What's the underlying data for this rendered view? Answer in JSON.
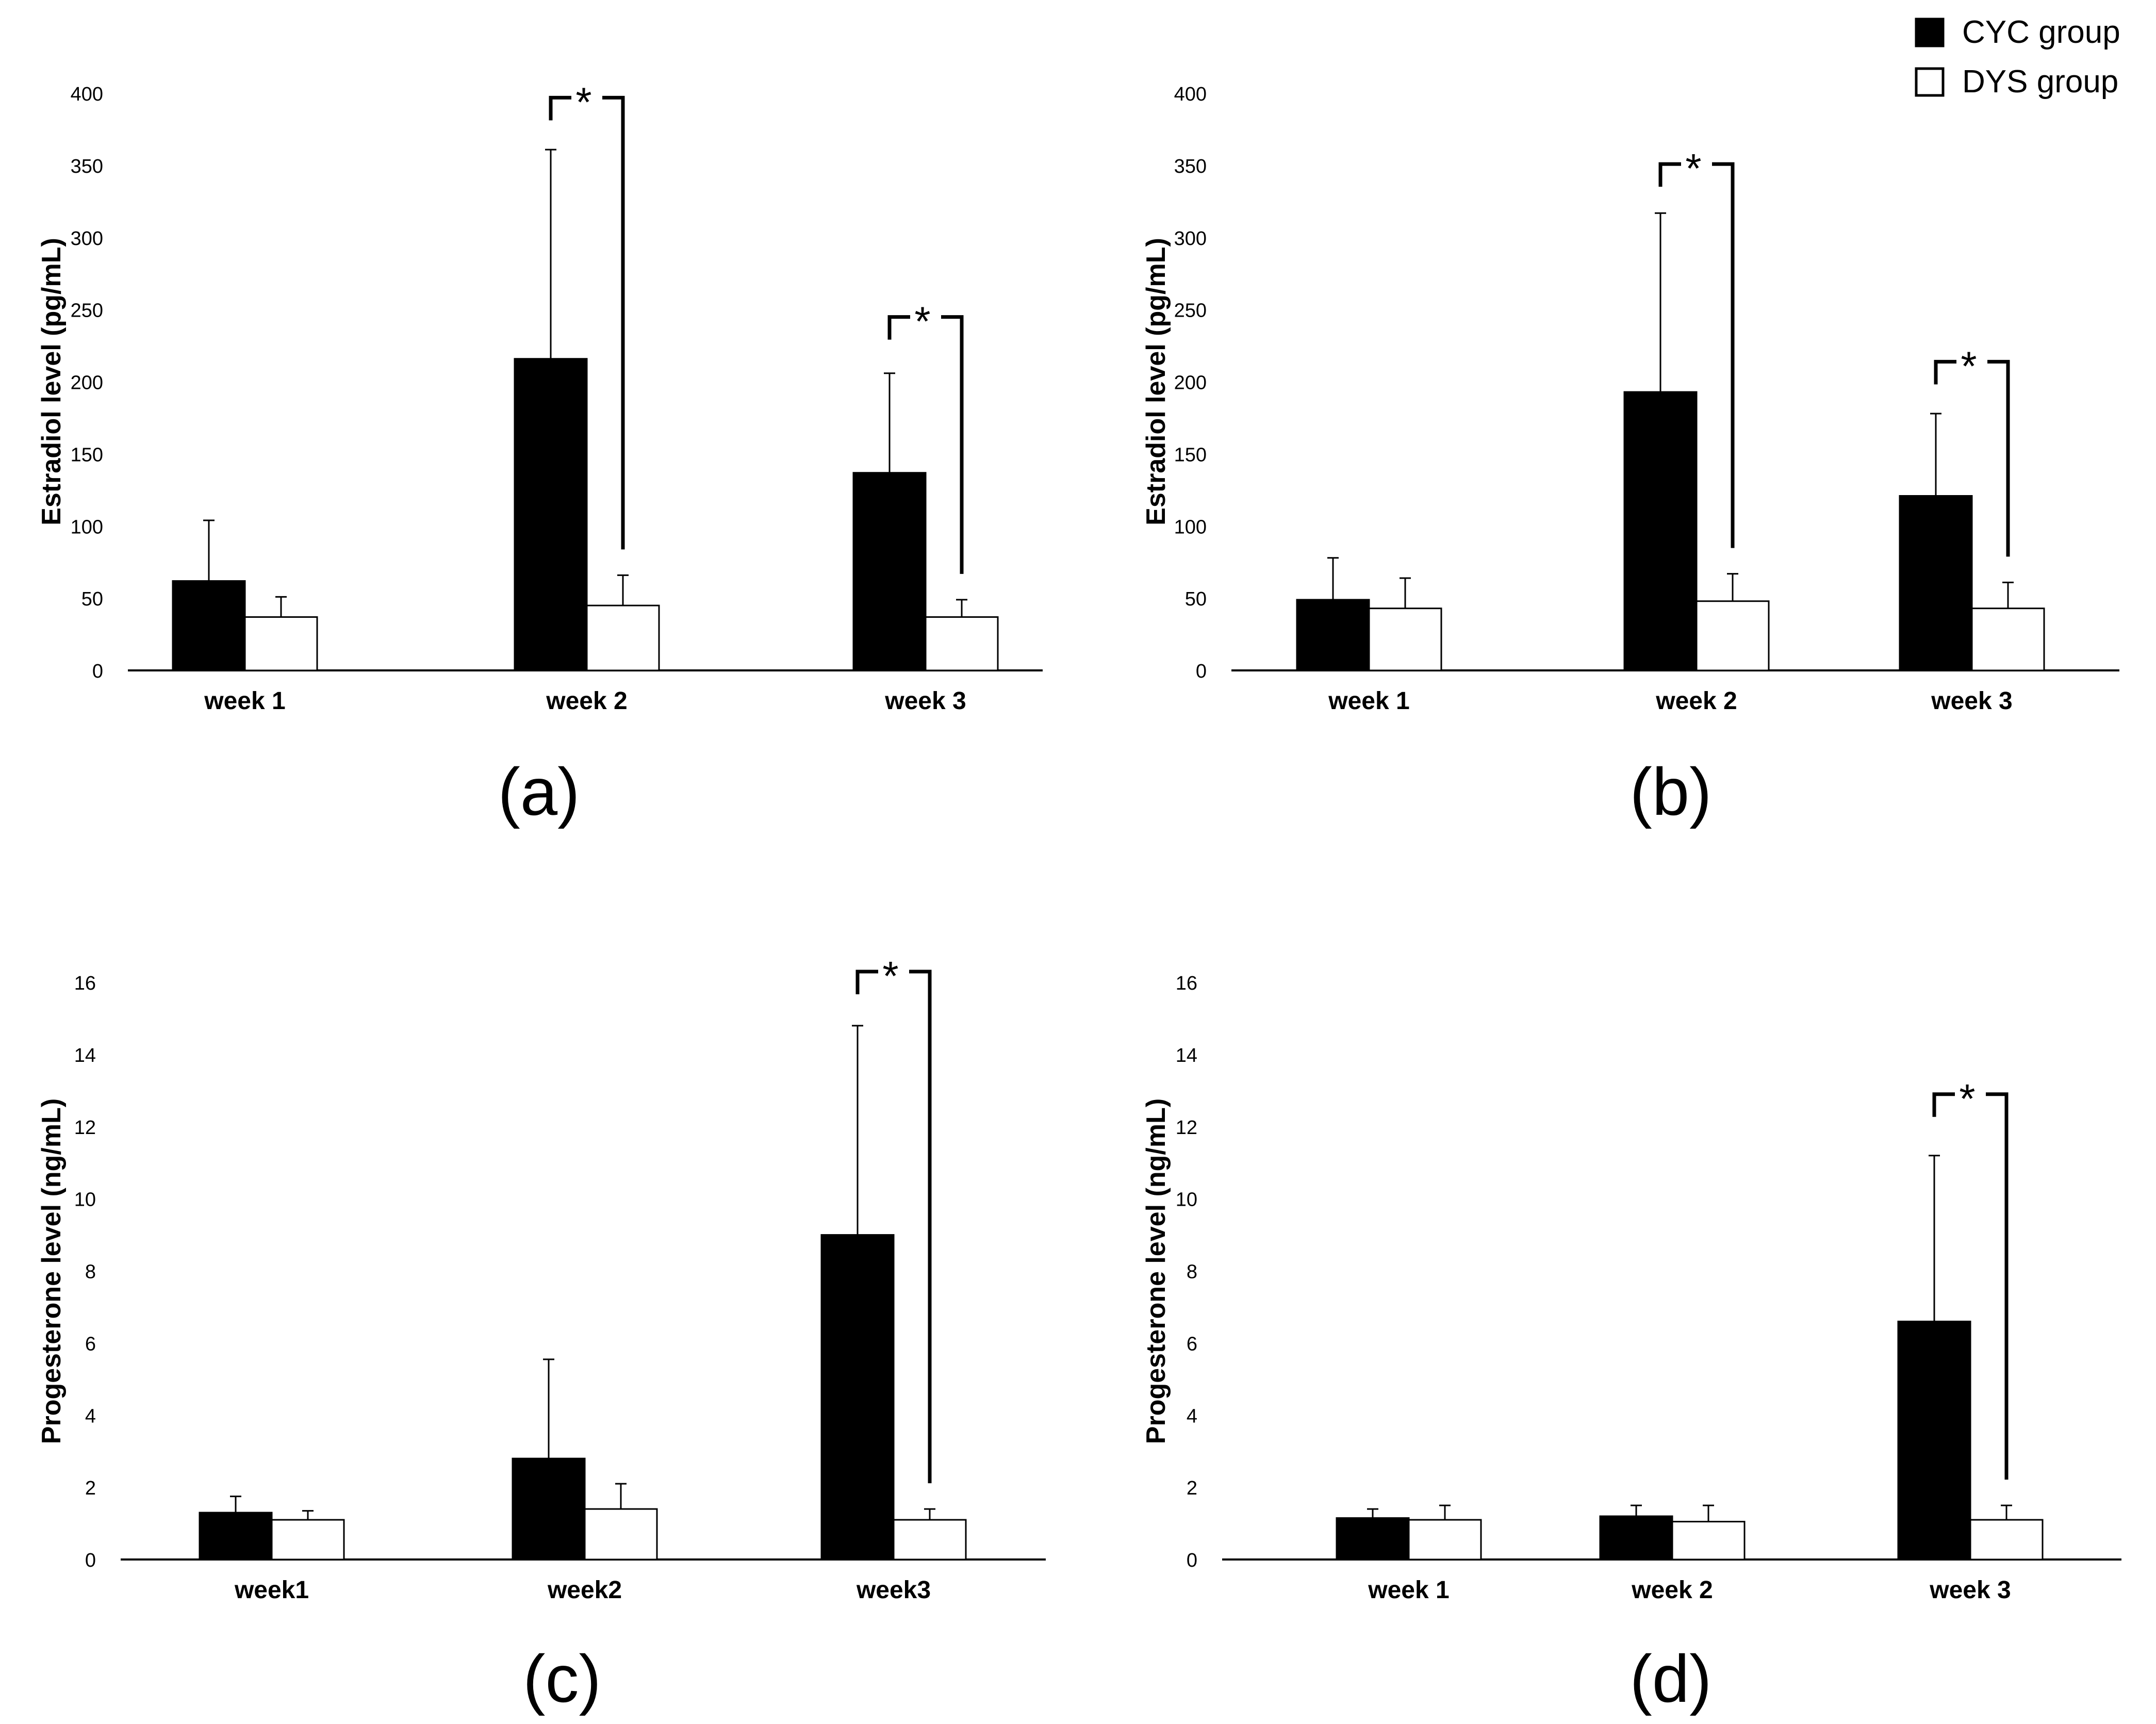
{
  "legend": {
    "items": [
      {
        "name": "CYC group",
        "fill": "#000000"
      },
      {
        "name": "DYS group",
        "fill": "#ffffff"
      }
    ],
    "placement": "top-right"
  },
  "colors": {
    "cyc": "#000000",
    "dys": "#ffffff",
    "stroke": "#000000"
  },
  "chart_data": [
    {
      "type": "bar",
      "panel_label": "(a)",
      "ylabel": "Estradiol level (pg/mL)",
      "ylim": [
        0,
        400
      ],
      "yticks": [
        "0",
        "50",
        "100",
        "150",
        "200",
        "250",
        "300",
        "350",
        "400"
      ],
      "categories": [
        "week 1",
        "week 2",
        "week 3"
      ],
      "series": [
        {
          "name": "CYC group",
          "values": [
            62,
            216,
            137
          ],
          "errors": [
            42,
            145,
            69
          ]
        },
        {
          "name": "DYS group",
          "values": [
            37,
            45,
            37
          ],
          "errors": [
            14,
            21,
            12
          ]
        }
      ],
      "significance": [
        {
          "category_index": 1,
          "label": "*",
          "top": 397
        },
        {
          "category_index": 2,
          "label": "*",
          "top": 245
        }
      ]
    },
    {
      "type": "bar",
      "panel_label": "(b)",
      "ylabel": "Estradiol level (pg/mL)",
      "ylim": [
        0,
        400
      ],
      "yticks": [
        "0",
        "50",
        "100",
        "150",
        "200",
        "250",
        "300",
        "350",
        "400"
      ],
      "categories": [
        "week 1",
        "week 2",
        "week 3"
      ],
      "series": [
        {
          "name": "CYC group",
          "values": [
            49,
            193,
            121
          ],
          "errors": [
            29,
            124,
            57
          ]
        },
        {
          "name": "DYS group",
          "values": [
            43,
            48,
            43
          ],
          "errors": [
            21,
            19,
            18
          ]
        }
      ],
      "significance": [
        {
          "category_index": 1,
          "label": "*",
          "top": 351
        },
        {
          "category_index": 2,
          "label": "*",
          "top": 214
        }
      ]
    },
    {
      "type": "bar",
      "panel_label": "(c)",
      "ylabel": "Progesterone level (ng/mL)",
      "ylim": [
        0,
        16
      ],
      "yticks": [
        "0",
        "2",
        "4",
        "6",
        "8",
        "10",
        "12",
        "14",
        "16"
      ],
      "categories": [
        "week1",
        "week2",
        "week3"
      ],
      "series": [
        {
          "name": "CYC group",
          "values": [
            1.3,
            2.8,
            9.0
          ],
          "errors": [
            0.45,
            2.75,
            5.8
          ]
        },
        {
          "name": "DYS group",
          "values": [
            1.1,
            1.4,
            1.1
          ],
          "errors": [
            0.25,
            0.7,
            0.3
          ]
        }
      ],
      "significance": [
        {
          "category_index": 2,
          "label": "*",
          "top": 16.3
        }
      ]
    },
    {
      "type": "bar",
      "panel_label": "(d)",
      "ylabel": "Progesterone level (ng/mL)",
      "ylim": [
        0,
        16
      ],
      "yticks": [
        "0",
        "2",
        "4",
        "6",
        "8",
        "10",
        "12",
        "14",
        "16"
      ],
      "categories": [
        "week 1",
        "week 2",
        "week 3"
      ],
      "series": [
        {
          "name": "CYC group",
          "values": [
            1.15,
            1.2,
            6.6
          ],
          "errors": [
            0.25,
            0.3,
            4.6
          ]
        },
        {
          "name": "DYS group",
          "values": [
            1.1,
            1.05,
            1.1
          ],
          "errors": [
            0.4,
            0.45,
            0.4
          ]
        }
      ],
      "significance": [
        {
          "category_index": 2,
          "label": "*",
          "top": 12.9
        }
      ]
    }
  ]
}
